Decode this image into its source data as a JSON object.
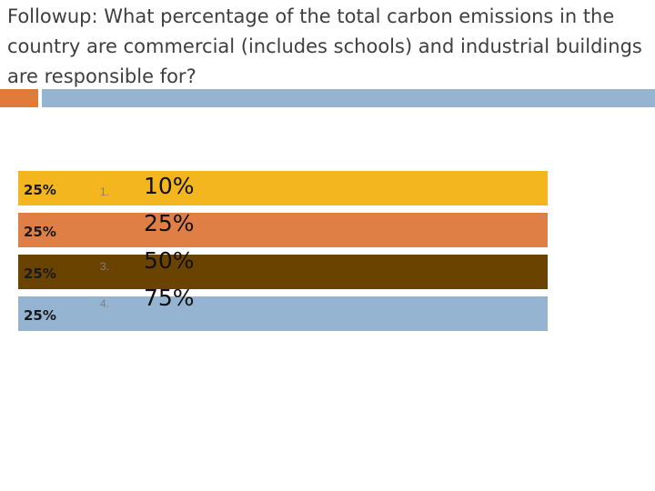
{
  "slide": {
    "title": "Followup: What percentage of the total carbon emissions in the country are commercial (includes schools) and industrial buildings are responsible for?"
  },
  "colors": {
    "accent_left": "#e07b39",
    "accent_right": "#94b4d2",
    "title_text": "#3f3f3f"
  },
  "answers": [
    {
      "number": "1.",
      "text": "10%"
    },
    {
      "number": "",
      "text": "25%"
    },
    {
      "number": "3.",
      "text": "50%"
    },
    {
      "number": "4.",
      "text": "75%"
    }
  ],
  "chart_data": {
    "type": "bar",
    "orientation": "horizontal",
    "categories": [
      "10%",
      "25%",
      "50%",
      "75%"
    ],
    "values": [
      25,
      25,
      25,
      25
    ],
    "value_labels": [
      "25%",
      "25%",
      "25%",
      "25%"
    ],
    "colors": [
      "#f3b61f",
      "#e07f45",
      "#6b4300",
      "#94b4d2"
    ],
    "xlim": [
      0,
      25
    ],
    "title": "",
    "xlabel": "",
    "ylabel": ""
  }
}
